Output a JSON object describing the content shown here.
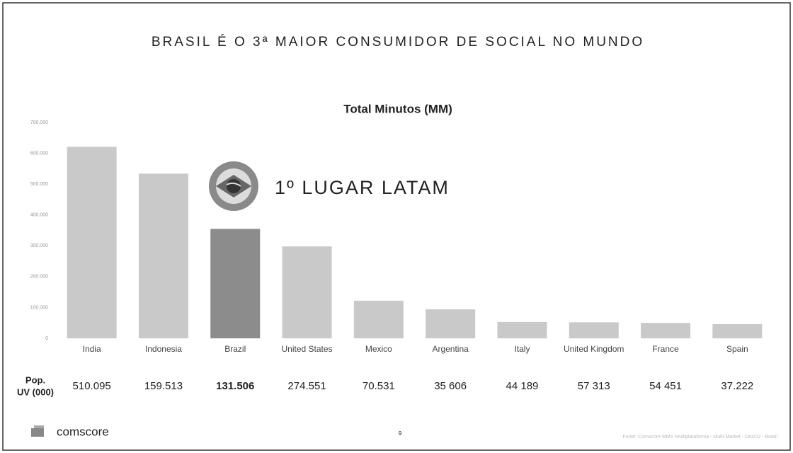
{
  "slide_title": "BRASIL É O 3ª MAIOR CONSUMIDOR DE SOCIAL NO MUNDO",
  "annotation": "1º LUGAR LATAM",
  "chart_data": {
    "type": "bar",
    "title": "Total Minutos (MM)",
    "categories": [
      "India",
      "Indonesia",
      "Brazil",
      "United States",
      "Mexico",
      "Argentina",
      "Italy",
      "United Kingdom",
      "France",
      "Spain"
    ],
    "values": [
      621000,
      534000,
      355000,
      298000,
      122000,
      94000,
      53000,
      52000,
      50000,
      46000
    ],
    "colors": [
      "#c9c9c9",
      "#c9c9c9",
      "#8c8c8c",
      "#c9c9c9",
      "#c9c9c9",
      "#c9c9c9",
      "#c9c9c9",
      "#c9c9c9",
      "#c9c9c9",
      "#c9c9c9"
    ],
    "ylim": [
      0,
      700000
    ],
    "yticks": [
      0,
      {
        "value": 100000,
        "label": "100.000"
      },
      {
        "value": 200000,
        "label": "200.000"
      },
      {
        "value": 300000,
        "label": "300.000"
      },
      {
        "value": 400000,
        "label": "400.000"
      },
      {
        "value": 500000,
        "label": "500.000"
      },
      {
        "value": 600000,
        "label": "600.000"
      },
      {
        "value": 700000,
        "label": "700.000"
      }
    ],
    "grid": false
  },
  "population": {
    "label": [
      "Pop.",
      "UV (000)"
    ],
    "values": [
      "510.095",
      "159.513",
      "131.506",
      "274.551",
      "70.531",
      "35 606",
      "44 189",
      "57 313",
      "54 451",
      "37.222"
    ]
  },
  "footer": {
    "brand": "comscore",
    "page": "9",
    "source": "Fonte: Comscore MMX Multiplataforma - Multi-Market - Dez/22 - Brasil"
  }
}
